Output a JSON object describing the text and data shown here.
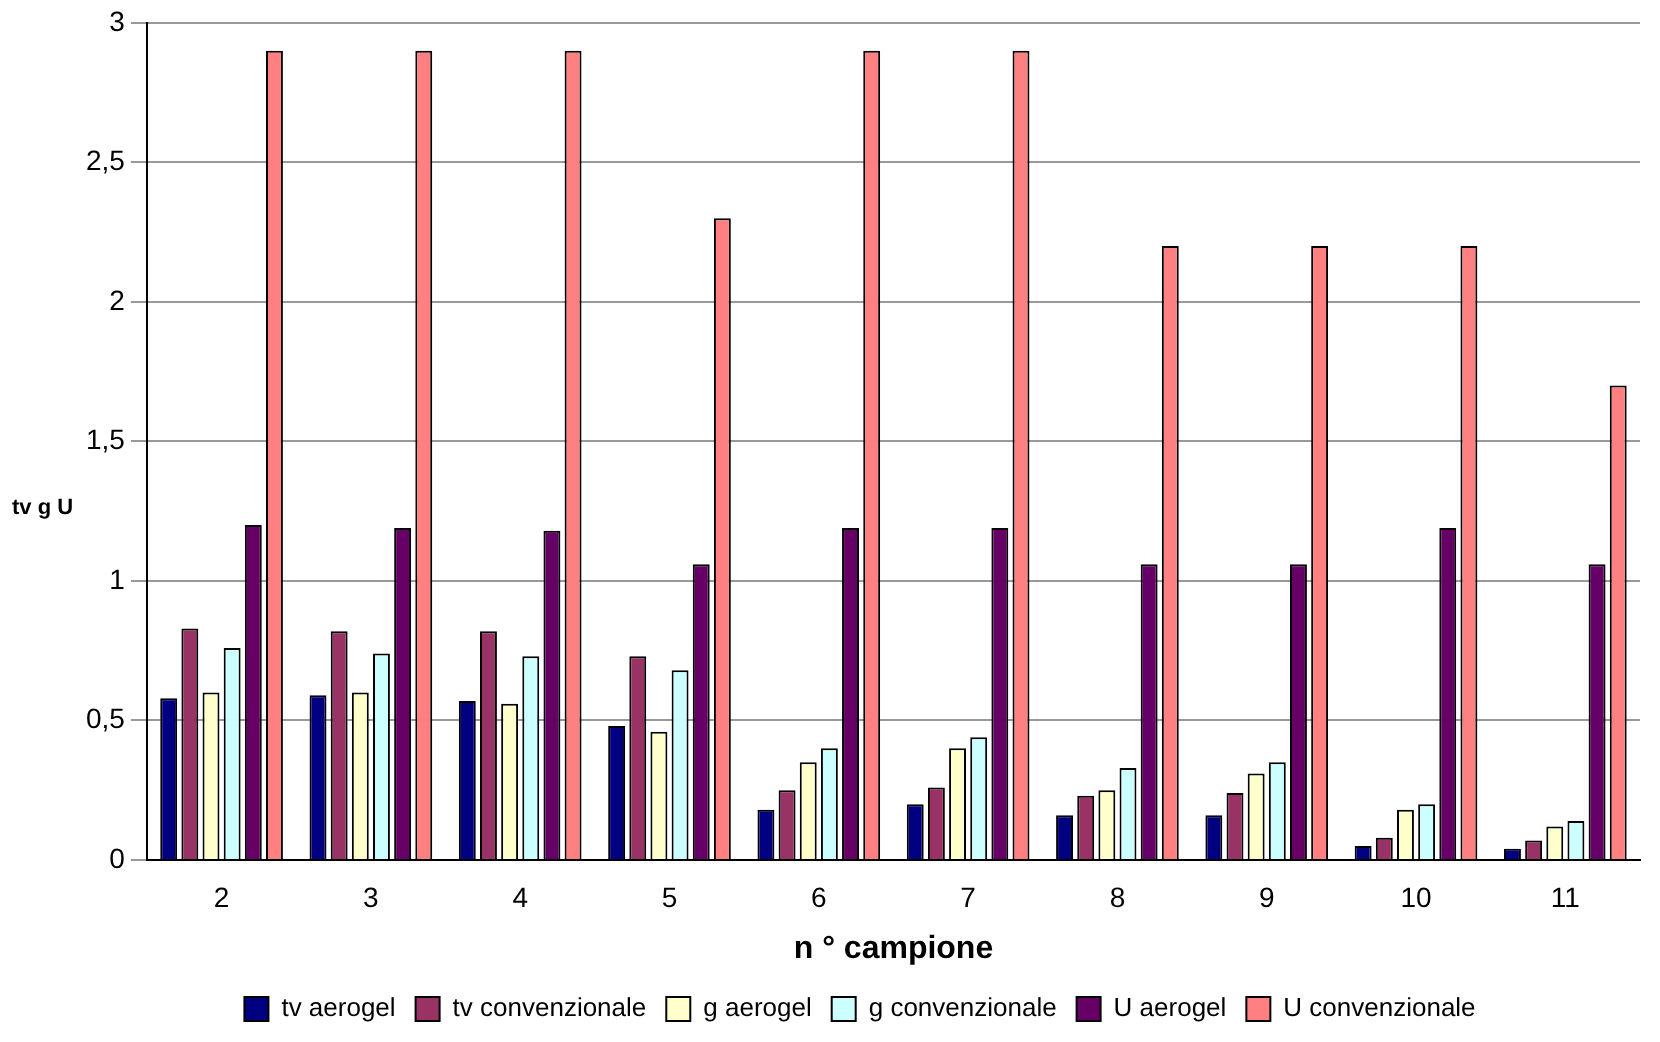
{
  "chart_data": {
    "type": "bar",
    "xlabel": "n ° campione",
    "ylabel": "tv g U",
    "categories": [
      "2",
      "3",
      "4",
      "5",
      "6",
      "7",
      "8",
      "9",
      "10",
      "11"
    ],
    "series": [
      {
        "name": "tv aerogel",
        "color": "#000080",
        "values": [
          0.58,
          0.59,
          0.57,
          0.48,
          0.18,
          0.2,
          0.16,
          0.16,
          0.05,
          0.04
        ]
      },
      {
        "name": "tv convenzionale",
        "color": "#993366",
        "values": [
          0.83,
          0.82,
          0.82,
          0.73,
          0.25,
          0.26,
          0.23,
          0.24,
          0.08,
          0.07
        ]
      },
      {
        "name": "g aerogel",
        "color": "#ffffcc",
        "values": [
          0.6,
          0.6,
          0.56,
          0.46,
          0.35,
          0.4,
          0.25,
          0.31,
          0.18,
          0.12
        ]
      },
      {
        "name": "g convenzionale",
        "color": "#ccffff",
        "values": [
          0.76,
          0.74,
          0.73,
          0.68,
          0.4,
          0.44,
          0.33,
          0.35,
          0.2,
          0.14
        ]
      },
      {
        "name": "U aerogel",
        "color": "#660066",
        "values": [
          1.2,
          1.19,
          1.18,
          1.06,
          1.19,
          1.19,
          1.06,
          1.06,
          1.19,
          1.06
        ]
      },
      {
        "name": "U convenzionale",
        "color": "#ff8080",
        "values": [
          2.9,
          2.9,
          2.9,
          2.3,
          2.9,
          2.9,
          2.2,
          2.2,
          2.2,
          1.7
        ]
      }
    ],
    "ylim": [
      0,
      3
    ],
    "yticks": [
      0,
      {
        "value": 0.5,
        "label": "0,5"
      },
      1,
      {
        "value": 1.5,
        "label": "1,5"
      },
      2,
      {
        "value": 2.5,
        "label": "2,5"
      },
      3
    ],
    "grid": "y",
    "legend": "bottom"
  }
}
